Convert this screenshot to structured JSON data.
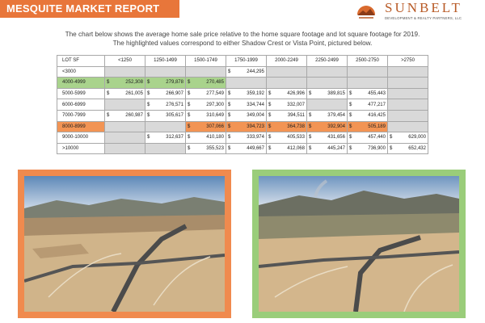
{
  "header": {
    "title": "MESQUITE MARKET REPORT"
  },
  "logo": {
    "name": "SUNBELT",
    "tagline": "DEVELOPMENT & REALTY PARTNERS, LLC"
  },
  "intro": {
    "line1": "The chart below shows the average home sale price relative to the home square footage and lot square footage for 2019.",
    "line2": "The highlighted values correspond to either Shadow Crest or Vista Point, pictured below."
  },
  "table": {
    "columns": [
      "LOT SF",
      "<1250",
      "1250-1499",
      "1500-1749",
      "1750-1999",
      "2000-2249",
      "2250-2499",
      "2500-2750",
      ">2750"
    ],
    "currency": "$",
    "rows": [
      {
        "label": "<3000",
        "cells": [
          "",
          "",
          "",
          "244,295",
          "",
          "",
          "",
          ""
        ]
      },
      {
        "label": "4000-4999",
        "cells": [
          "252,308",
          "279,878",
          "270,485",
          "",
          "",
          "",
          "",
          ""
        ]
      },
      {
        "label": "5000-5999",
        "cells": [
          "261,005",
          "266,907",
          "277,549",
          "359,192",
          "426,996",
          "389,815",
          "455,443",
          ""
        ]
      },
      {
        "label": "6000-6999",
        "cells": [
          "",
          "276,571",
          "297,300",
          "334,744",
          "332,007",
          "",
          "477,217",
          ""
        ]
      },
      {
        "label": "7000-7999",
        "cells": [
          "260,987",
          "305,617",
          "310,649",
          "349,004",
          "394,511",
          "379,454",
          "416,425",
          ""
        ]
      },
      {
        "label": "8000-8999",
        "cells": [
          "",
          "",
          "307,066",
          "394,723",
          "364,738",
          "392,904",
          "505,189",
          ""
        ]
      },
      {
        "label": "9000-10000",
        "cells": [
          "",
          "312,637",
          "410,180",
          "333,974",
          "405,533",
          "431,656",
          "457,440",
          "629,000"
        ]
      },
      {
        "label": ">10000",
        "cells": [
          "",
          "",
          "355,523",
          "449,667",
          "412,068",
          "445,247",
          "736,900",
          "652,432"
        ]
      }
    ],
    "colors": {
      "gray": "#d9d9d9",
      "green_highlight": "#a9d38c",
      "orange_highlight": "#f29454"
    }
  },
  "photos": [
    {
      "name": "Shadow Crest",
      "frame_color": "#f08a4e"
    },
    {
      "name": "Vista Point",
      "frame_color": "#9acd7a"
    }
  ]
}
